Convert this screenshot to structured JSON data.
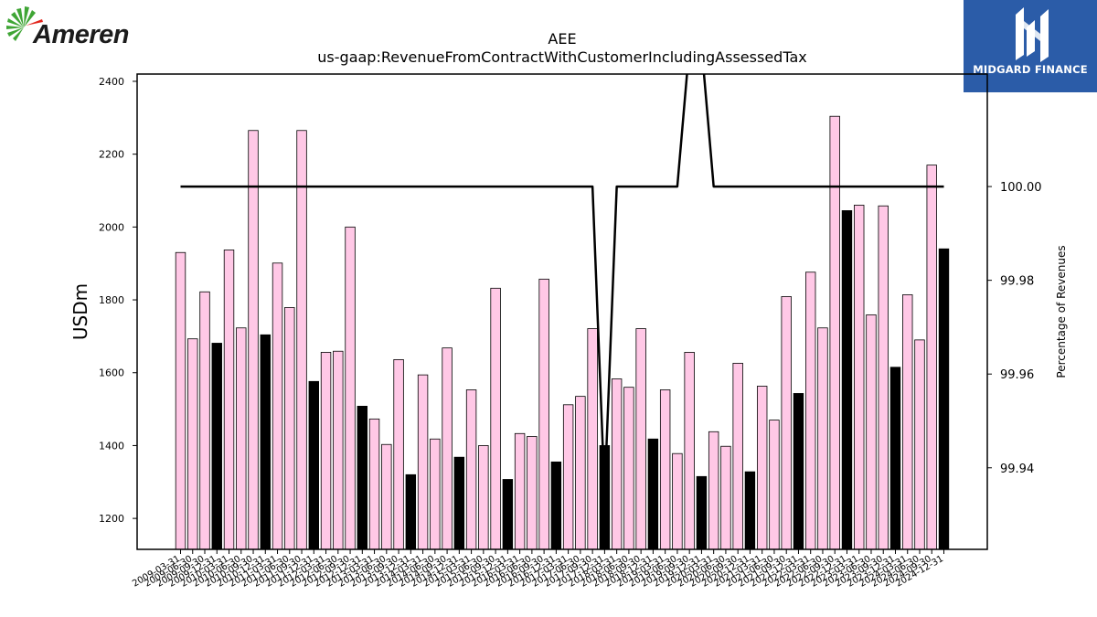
{
  "logos": {
    "left_text": "Ameren",
    "right_text": "MIDGARD FINANCE"
  },
  "chart_data": {
    "type": "bar",
    "title": "AEE",
    "subtitle": "us-gaap:RevenueFromContractWithCustomerIncludingAssessedTax",
    "ylabel": "USDm",
    "y2label": "Percentage of Revenues",
    "ylim": [
      1115,
      2420
    ],
    "y2lim": [
      99.9226,
      100.024
    ],
    "yticks": [
      1200,
      1400,
      1600,
      1800,
      2000,
      2200,
      2400
    ],
    "y2ticks": [
      99.94,
      99.96,
      99.98,
      100.0
    ],
    "y2tick_labels": [
      "99.94",
      "99.96",
      "99.98",
      "100.00"
    ],
    "colors": {
      "quarter": "#ffc8e6",
      "annual": "#000000",
      "line": "#000000"
    },
    "categories": [
      "2009-03-31",
      "2009-06-30",
      "2009-09-30",
      "2009-12-31",
      "2010-03-31",
      "2010-06-30",
      "2010-09-30",
      "2010-12-31",
      "2011-03-31",
      "2011-06-30",
      "2011-09-30",
      "2011-12-31",
      "2012-03-31",
      "2012-06-30",
      "2012-09-30",
      "2012-12-31",
      "2013-03-31",
      "2013-06-30",
      "2013-09-30",
      "2013-12-31",
      "2014-03-31",
      "2014-06-30",
      "2014-09-30",
      "2014-12-31",
      "2015-03-31",
      "2015-06-30",
      "2015-09-30",
      "2015-12-31",
      "2016-03-31",
      "2016-06-30",
      "2016-09-30",
      "2016-12-31",
      "2017-03-31",
      "2017-06-30",
      "2017-09-30",
      "2017-12-31",
      "2018-03-31",
      "2018-06-30",
      "2018-09-30",
      "2018-12-31",
      "2019-03-31",
      "2019-06-30",
      "2019-09-30",
      "2019-12-31",
      "2020-03-31",
      "2020-06-30",
      "2020-09-30",
      "2020-12-31",
      "2021-03-31",
      "2021-06-30",
      "2021-09-30",
      "2021-12-31",
      "2022-03-31",
      "2022-06-30",
      "2022-09-30",
      "2022-12-31",
      "2023-03-31",
      "2023-06-30",
      "2023-09-30",
      "2023-12-31",
      "2024-03-31",
      "2024-06-30",
      "2024-09-30",
      "2024-12-31"
    ],
    "series": [
      {
        "values": [
          1930,
          1693,
          1822,
          1681,
          1937,
          1723,
          2265,
          1704,
          1901,
          1779,
          2265,
          1576,
          1656,
          1659,
          2000,
          1508,
          1473,
          1403,
          1636,
          1320,
          1594,
          1418,
          1668,
          1368,
          1553,
          1400,
          1832,
          1307,
          1433,
          1425,
          1857,
          1355,
          1512,
          1535,
          1721,
          1400,
          1583,
          1560,
          1721,
          1418,
          1553,
          1378,
          1656,
          1315,
          1438,
          1398,
          1626,
          1328,
          1563,
          1470,
          1809,
          1543,
          1876,
          1723,
          2304,
          2045,
          2060,
          1759,
          2058,
          1615,
          1814,
          1690,
          2170,
          1940
        ]
      },
      {
        "values": [
          100,
          100,
          100,
          100,
          100,
          100,
          100,
          100,
          100,
          100,
          100,
          100,
          100,
          100,
          100,
          100,
          100,
          100,
          100,
          100,
          100,
          100,
          100,
          100,
          100,
          100,
          100,
          100,
          100,
          100,
          100,
          100,
          100,
          100,
          100,
          99.9345,
          100,
          100,
          100,
          100,
          100,
          100,
          100.03,
          100.03,
          100,
          100,
          100,
          100,
          100,
          100,
          100,
          100,
          100,
          100,
          100,
          100,
          100,
          100,
          100,
          100,
          100,
          100,
          100,
          100
        ]
      }
    ],
    "xtick_labels": [
      "2009-03-31",
      "2009-06-30",
      "2009-09-30",
      "2009-12-31",
      "2010-03-31",
      "2010-06-30",
      "2010-09-30",
      "2010-12-31",
      "2011-03-31",
      "2011-06-30",
      "2011-09-30",
      "2011-12-31",
      "2012-03-31",
      "2012-06-30",
      "2012-09-30",
      "2012-12-31",
      "2013-03-31",
      "2013-06-30",
      "2013-09-30",
      "2013-12-31",
      "2014-03-31",
      "2014-06-30",
      "2014-09-30",
      "2014-12-31",
      "2015-03-31",
      "2015-06-30",
      "2015-09-30",
      "2015-12-31",
      "2016-03-31",
      "2016-06-30",
      "2016-09-30",
      "2016-12-31",
      "2017-03-31",
      "2017-06-30",
      "2017-09-30",
      "2017-12-31",
      "2018-03-31",
      "2018-06-30",
      "2018-09-30",
      "2018-12-31",
      "2019-03-31",
      "2019-06-30",
      "2019-09-30",
      "2019-12-31",
      "2020-03-31",
      "2020-06-30",
      "2020-09-30",
      "2020-12-31",
      "2021-03-31",
      "2021-06-30",
      "2021-09-30",
      "2021-12-31",
      "2022-03-31",
      "2022-06-30",
      "2022-09-30",
      "2022-12-31",
      "2023-03-31",
      "2023-06-30",
      "2023-09-30",
      "2023-12-31",
      "2024-03-31",
      "2024-06-30",
      "2024-09-30",
      "2024-12-31"
    ],
    "grid": false,
    "legend": "none"
  }
}
